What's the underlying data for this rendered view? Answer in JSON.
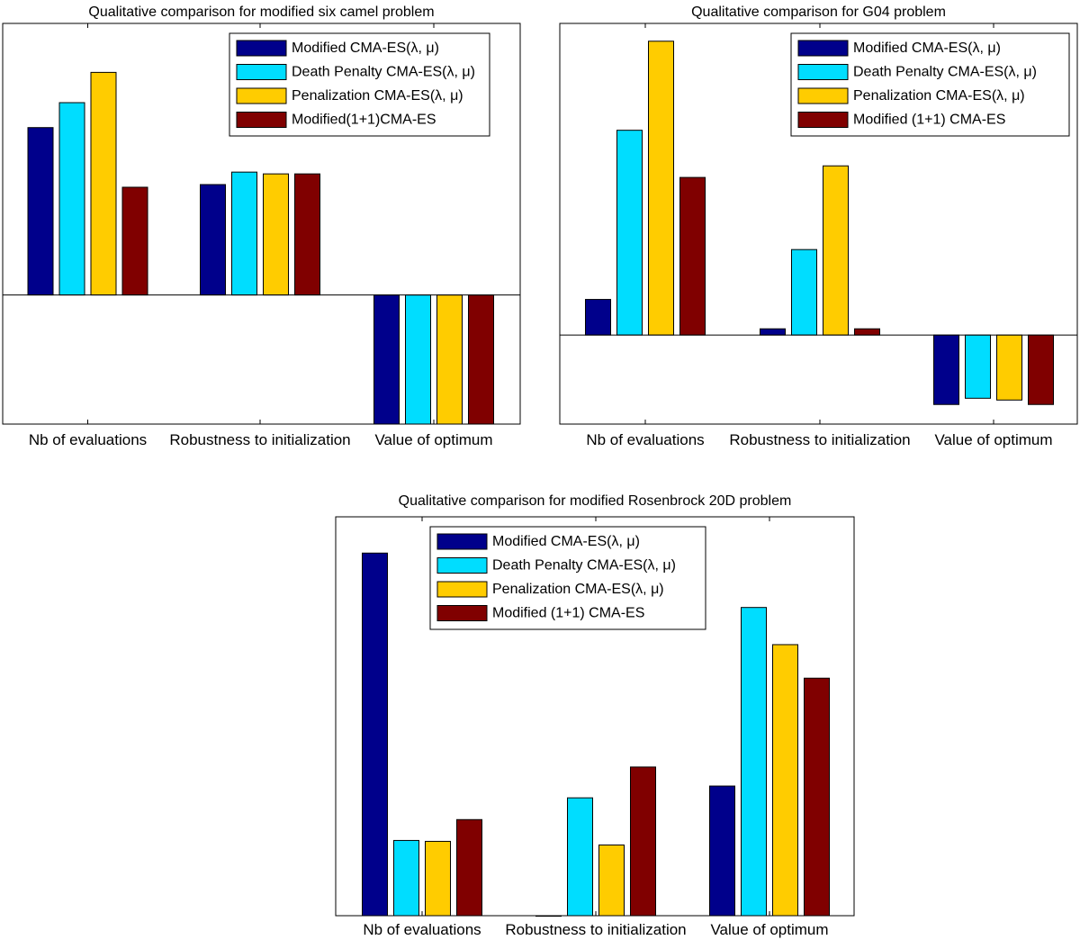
{
  "chart_data": [
    {
      "type": "bar",
      "title": "Qualitative comparison for modified six camel problem",
      "categories": [
        "Nb of evaluations",
        "Robustness to initialization",
        "Value of optimum"
      ],
      "ylim": [
        -1.45,
        3.05
      ],
      "legend_position": "top-right",
      "grid": false,
      "xlabel": "",
      "ylabel": "",
      "series": [
        {
          "name": "Modified CMA-ES(λ, μ)",
          "color": "#00008B",
          "values": [
            1.88,
            1.24,
            -1.45
          ]
        },
        {
          "name": "Death Penalty CMA-ES(λ, μ)",
          "color": "#00DDFF",
          "values": [
            2.16,
            1.38,
            -1.45
          ]
        },
        {
          "name": "Penalization CMA-ES(λ, μ)",
          "color": "#FFCC00",
          "values": [
            2.5,
            1.36,
            -1.45
          ]
        },
        {
          "name": "Modified(1+1)CMA-ES",
          "color": "#800000",
          "values": [
            1.21,
            1.36,
            -1.45
          ]
        }
      ]
    },
    {
      "type": "bar",
      "title": "Qualitative comparison for G04 problem",
      "categories": [
        "Nb of evaluations",
        "Robustness to initialization",
        "Value of optimum"
      ],
      "ylim": [
        -1.0,
        3.5
      ],
      "legend_position": "top-right",
      "grid": false,
      "xlabel": "",
      "ylabel": "",
      "series": [
        {
          "name": "Modified CMA-ES(λ, μ)",
          "color": "#00008B",
          "values": [
            0.4,
            0.07,
            -0.78
          ]
        },
        {
          "name": "Death Penalty CMA-ES(λ, μ)",
          "color": "#00DDFF",
          "values": [
            2.3,
            0.96,
            -0.71
          ]
        },
        {
          "name": "Penalization CMA-ES(λ, μ)",
          "color": "#FFCC00",
          "values": [
            3.3,
            1.9,
            -0.73
          ]
        },
        {
          "name": "Modified (1+1) CMA-ES",
          "color": "#800000",
          "values": [
            1.77,
            0.07,
            -0.78
          ]
        }
      ]
    },
    {
      "type": "bar",
      "title": "Qualitative comparison for modified Rosenbrock 20D problem",
      "categories": [
        "Nb of evaluations",
        "Robustness to initialization",
        "Value of optimum"
      ],
      "ylim": [
        0,
        4.4
      ],
      "legend_position": "top-center",
      "grid": false,
      "xlabel": "",
      "ylabel": "",
      "series": [
        {
          "name": "Modified CMA-ES(λ, μ)",
          "color": "#00008B",
          "values": [
            4.0,
            0.0,
            1.43
          ]
        },
        {
          "name": "Death Penalty CMA-ES(λ, μ)",
          "color": "#00DDFF",
          "values": [
            0.83,
            1.3,
            3.4
          ]
        },
        {
          "name": "Penalization CMA-ES(λ, μ)",
          "color": "#FFCC00",
          "values": [
            0.82,
            0.78,
            2.99
          ]
        },
        {
          "name": "Modified (1+1) CMA-ES",
          "color": "#800000",
          "values": [
            1.06,
            1.64,
            2.62
          ]
        }
      ]
    }
  ]
}
